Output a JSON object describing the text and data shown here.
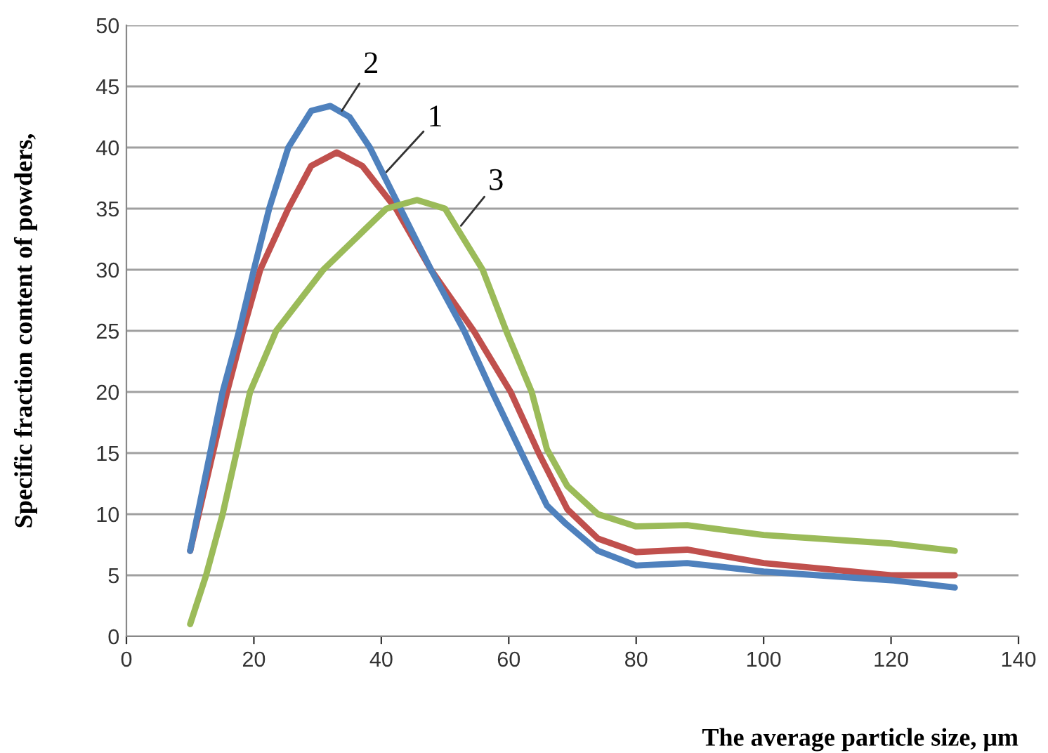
{
  "chart_data": {
    "type": "line",
    "xlabel": "The average particle size, μm",
    "ylabel": "Specific fraction content of powders,",
    "xlim": [
      0,
      140
    ],
    "xticks": [
      0,
      20,
      40,
      60,
      80,
      100,
      120,
      140
    ],
    "ylim": [
      0,
      50
    ],
    "yticks": [
      0,
      5,
      10,
      15,
      20,
      25,
      30,
      35,
      40,
      45,
      50
    ],
    "grid": "y",
    "legend": false,
    "marker": "none",
    "line_style": "solid",
    "series": [
      {
        "color": "#c0504d",
        "x": [
          10,
          15.8,
          18.3,
          21,
          25.4,
          29,
          33,
          37,
          42.3,
          47.8,
          54.5,
          60.3,
          64.7,
          69.2,
          74,
          80,
          88,
          100,
          120,
          130
        ],
        "values": [
          7,
          20,
          25,
          30,
          35,
          38.5,
          39.6,
          38.5,
          35,
          30,
          25,
          20,
          15,
          10.4,
          8,
          6.9,
          7.1,
          6,
          5,
          5
        ]
      },
      {
        "color": "#4f81bd",
        "x": [
          10,
          15.1,
          17.7,
          20,
          22.4,
          25.4,
          29,
          32,
          35,
          38.2,
          43,
          47.8,
          53,
          57.4,
          62,
          66,
          69,
          74,
          80,
          88,
          100,
          120,
          130
        ],
        "values": [
          7,
          20,
          25,
          30,
          35,
          40,
          43,
          43.4,
          42.5,
          40,
          35,
          30,
          25,
          20,
          15,
          10.7,
          9.2,
          7,
          5.8,
          6,
          5.3,
          4.6,
          4
        ]
      },
      {
        "color": "#9bbb59",
        "x": [
          10,
          12.5,
          15.1,
          19.4,
          23.5,
          30.9,
          40.8,
          45.6,
          50,
          55.9,
          59.6,
          63.6,
          66,
          69.2,
          74,
          80,
          88,
          100,
          120,
          130
        ],
        "values": [
          1,
          5,
          10,
          20,
          25,
          30,
          35,
          35.7,
          35,
          30,
          25,
          20,
          15.3,
          12.3,
          10,
          9,
          9.1,
          8.3,
          7.6,
          7
        ]
      }
    ],
    "annotations": [
      {
        "text": "1",
        "x": 40.8,
        "y": 38
      },
      {
        "text": "2",
        "x": 33.8,
        "y": 43
      },
      {
        "text": "3",
        "x": 52.5,
        "y": 33.6
      }
    ]
  }
}
